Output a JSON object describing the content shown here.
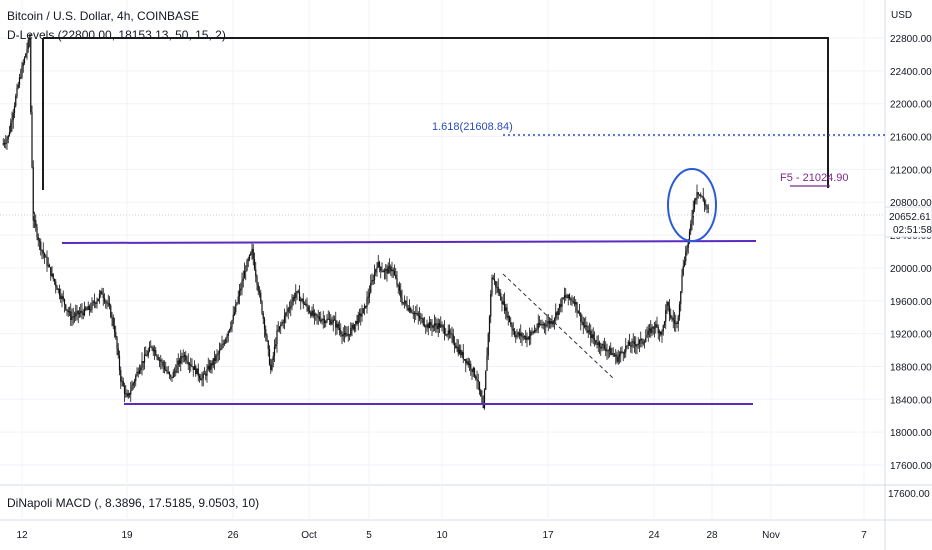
{
  "header": {
    "symbol_title": "Bitcoin / U.S. Dollar, 4h, COINBASE",
    "indicator_label": "D-Levels (22800.00, 18153.13, 50, 15, 2)",
    "currency": "USD"
  },
  "price_axis": {
    "ticks": [
      22800,
      22400,
      22000,
      21600,
      21200,
      20800,
      20400,
      20000,
      19600,
      19200,
      18800,
      18400,
      18000,
      17600
    ],
    "tick_labels": [
      "22800.00",
      "22400.00",
      "22000.00",
      "21600.00",
      "21200.00",
      "20800.00",
      "20400.00",
      "20000.00",
      "19600.00",
      "19200.00",
      "18800.00",
      "18400.00",
      "18000.00",
      "17600.00"
    ],
    "current_price": "20652.61",
    "countdown": "02:51:58"
  },
  "time_axis": {
    "labels": [
      "12",
      "19",
      "26",
      "Oct",
      "5",
      "10",
      "17",
      "24",
      "28",
      "Nov",
      "7"
    ]
  },
  "annotations": {
    "fib_label": "1.618(21608.84)",
    "f5_label": "F5 - 21024.90"
  },
  "macd": {
    "label": "DiNapoli MACD (, 8.3896, 17.5185, 9.0503, 10)",
    "tick_labels": [
      "17600.00"
    ]
  },
  "chart_data": {
    "type": "candlestick",
    "title": "Bitcoin / U.S. Dollar, 4h, COINBASE",
    "ylabel": "USD",
    "ylim": [
      17400,
      23000
    ],
    "x_tick_labels": [
      "12",
      "19",
      "26",
      "Oct",
      "5",
      "10",
      "17",
      "24",
      "28",
      "Nov",
      "7"
    ],
    "price_path": [
      [
        0,
        21500
      ],
      [
        5,
        21600
      ],
      [
        10,
        22000
      ],
      [
        14,
        22300
      ],
      [
        18,
        22550
      ],
      [
        22,
        22800
      ],
      [
        23,
        21900
      ],
      [
        25,
        20600
      ],
      [
        30,
        20300
      ],
      [
        40,
        19900
      ],
      [
        55,
        19400
      ],
      [
        70,
        19500
      ],
      [
        80,
        19700
      ],
      [
        86,
        19500
      ],
      [
        90,
        19250
      ],
      [
        95,
        18650
      ],
      [
        100,
        18400
      ],
      [
        110,
        18800
      ],
      [
        120,
        19050
      ],
      [
        135,
        18650
      ],
      [
        145,
        18950
      ],
      [
        160,
        18650
      ],
      [
        175,
        19000
      ],
      [
        185,
        19400
      ],
      [
        195,
        20000
      ],
      [
        200,
        20200
      ],
      [
        210,
        19300
      ],
      [
        215,
        18750
      ],
      [
        220,
        19200
      ],
      [
        235,
        19700
      ],
      [
        250,
        19400
      ],
      [
        265,
        19350
      ],
      [
        275,
        19150
      ],
      [
        290,
        19500
      ],
      [
        300,
        20050
      ],
      [
        306,
        19950
      ],
      [
        312,
        20000
      ],
      [
        320,
        19600
      ],
      [
        330,
        19450
      ],
      [
        340,
        19300
      ],
      [
        350,
        19300
      ],
      [
        360,
        19150
      ],
      [
        365,
        19000
      ],
      [
        375,
        18800
      ],
      [
        380,
        18650
      ],
      [
        385,
        18250
      ],
      [
        392,
        19900
      ],
      [
        400,
        19600
      ],
      [
        410,
        19200
      ],
      [
        420,
        19150
      ],
      [
        430,
        19300
      ],
      [
        440,
        19350
      ],
      [
        450,
        19650
      ],
      [
        458,
        19600
      ],
      [
        465,
        19300
      ],
      [
        475,
        19100
      ],
      [
        485,
        19000
      ],
      [
        492,
        18900
      ],
      [
        500,
        19050
      ],
      [
        512,
        19100
      ],
      [
        522,
        19300
      ],
      [
        528,
        19200
      ],
      [
        532,
        19550
      ],
      [
        535,
        19400
      ],
      [
        540,
        19300
      ],
      [
        545,
        20050
      ],
      [
        550,
        20400
      ],
      [
        553,
        20750
      ],
      [
        556,
        20950
      ],
      [
        560,
        20850
      ],
      [
        565,
        20700
      ]
    ],
    "d_levels": {
      "high": 22800.0,
      "low": 18153.13,
      "upper_level": 20290,
      "lower_level": 18350
    },
    "fib_1_618": 21608.84,
    "f5_target": 21024.9,
    "current_price": 20652.61
  }
}
